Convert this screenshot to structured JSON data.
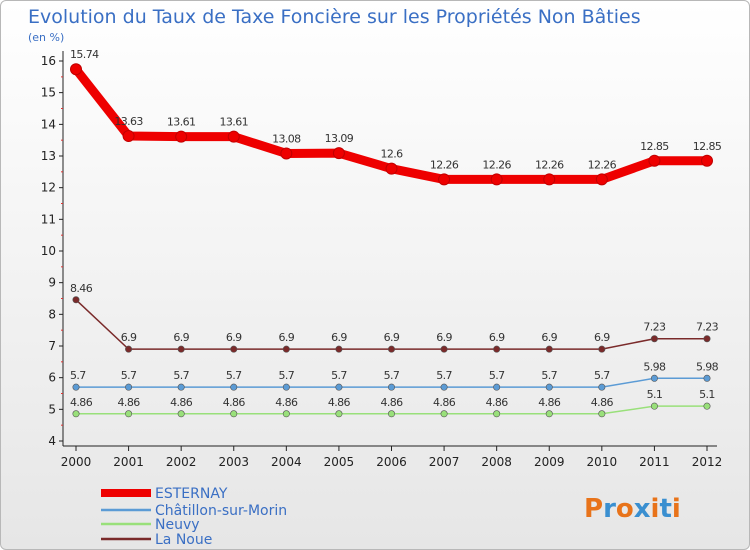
{
  "chart_data": {
    "type": "line",
    "title": "Evolution du Taux de Taxe Foncière sur les Propriétés Non Bâties",
    "unit_label": "(en %)",
    "x": [
      "2000",
      "2001",
      "2002",
      "2003",
      "2004",
      "2005",
      "2006",
      "2007",
      "2008",
      "2009",
      "2010",
      "2011",
      "2012"
    ],
    "y_ticks": [
      "4",
      "5",
      "6",
      "7",
      "8",
      "9",
      "10",
      "11",
      "12",
      "13",
      "14",
      "15",
      "16"
    ],
    "ylim": [
      4,
      16
    ],
    "grid": false,
    "legend_position": "bottom-left",
    "series": [
      {
        "name": "ESTERNAY",
        "color": "#ee0000",
        "values": [
          15.74,
          13.63,
          13.61,
          13.61,
          13.08,
          13.09,
          12.6,
          12.26,
          12.26,
          12.26,
          12.26,
          12.85,
          12.85
        ],
        "labels": [
          "15.74",
          "13.63",
          "13.61",
          "13.61",
          "13.08",
          "13.09",
          "12.6",
          "12.26",
          "12.26",
          "12.26",
          "12.26",
          "12.85",
          "12.85"
        ]
      },
      {
        "name": "Châtillon-sur-Morin",
        "color": "#5b9bd5",
        "values": [
          5.7,
          5.7,
          5.7,
          5.7,
          5.7,
          5.7,
          5.7,
          5.7,
          5.7,
          5.7,
          5.7,
          5.98,
          5.98
        ],
        "labels": [
          "5.7",
          "5.7",
          "5.7",
          "5.7",
          "5.7",
          "5.7",
          "5.7",
          "5.7",
          "5.7",
          "5.7",
          "5.7",
          "5.98",
          "5.98"
        ]
      },
      {
        "name": "Neuvy",
        "color": "#99e07a",
        "values": [
          4.86,
          4.86,
          4.86,
          4.86,
          4.86,
          4.86,
          4.86,
          4.86,
          4.86,
          4.86,
          4.86,
          5.1,
          5.1
        ],
        "labels": [
          "4.86",
          "4.86",
          "4.86",
          "4.86",
          "4.86",
          "4.86",
          "4.86",
          "4.86",
          "4.86",
          "4.86",
          "4.86",
          "5.1",
          "5.1"
        ]
      },
      {
        "name": "La Noue",
        "color": "#7a2a2a",
        "values": [
          8.46,
          6.9,
          6.9,
          6.9,
          6.9,
          6.9,
          6.9,
          6.9,
          6.9,
          6.9,
          6.9,
          7.23,
          7.23
        ],
        "labels": [
          "8.46",
          "6.9",
          "6.9",
          "6.9",
          "6.9",
          "6.9",
          "6.9",
          "6.9",
          "6.9",
          "6.9",
          "6.9",
          "7.23",
          "7.23"
        ]
      }
    ]
  },
  "logo": {
    "text": "Proxiti",
    "colors": [
      "#e8731a",
      "#3a8fd0",
      "#e8731a",
      "#3a8fd0",
      "#e8731a",
      "#3a8fd0",
      "#e8731a"
    ]
  }
}
